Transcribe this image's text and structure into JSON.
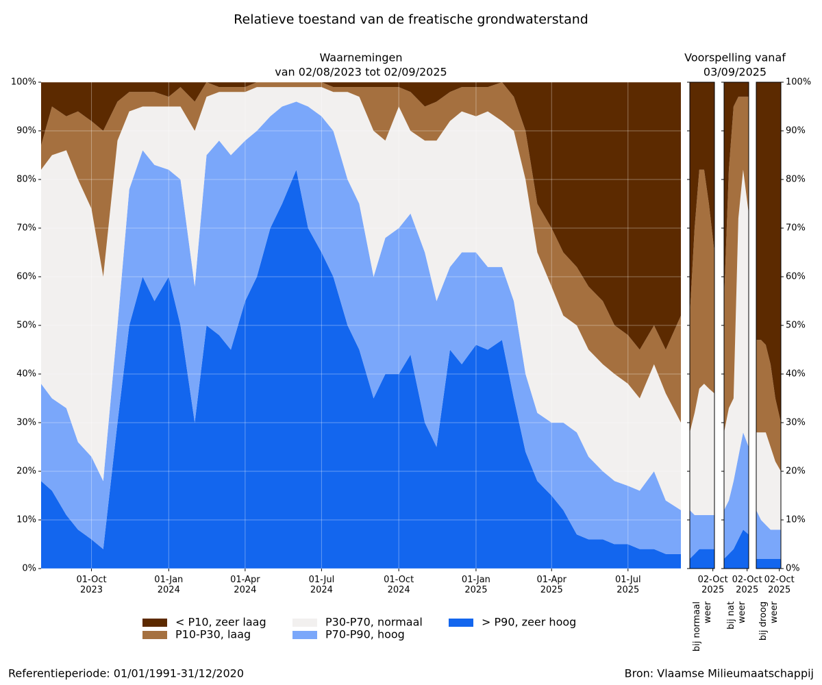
{
  "title": "Relatieve toestand van de freatische grondwaterstand",
  "forecast_title": "Voorspelling vanaf",
  "forecast_subtitle": "03/09/2025",
  "footer_left": "Referentieperiode: 01/01/1991-31/12/2020",
  "footer_right": "Bron: Vlaamse Milieumaatschappij",
  "chart_data": [
    {
      "type": "area",
      "title": "Waarnemingen",
      "subtitle": "van 02/08/2023 tot 02/09/2025",
      "grid": true,
      "xlim": [
        "2023-08-02",
        "2025-09-02"
      ],
      "ylim": [
        0,
        100
      ],
      "yticks": [
        {
          "value": 0,
          "label": "0%"
        },
        {
          "value": 10,
          "label": "10%"
        },
        {
          "value": 20,
          "label": "20%"
        },
        {
          "value": 30,
          "label": "30%"
        },
        {
          "value": 40,
          "label": "40%"
        },
        {
          "value": 50,
          "label": "50%"
        },
        {
          "value": 60,
          "label": "60%"
        },
        {
          "value": 70,
          "label": "70%"
        },
        {
          "value": 80,
          "label": "80%"
        },
        {
          "value": 90,
          "label": "90%"
        },
        {
          "value": 100,
          "label": "100%"
        }
      ],
      "xticks": [
        {
          "value": "2023-10-01",
          "label": "01-Oct 2023"
        },
        {
          "value": "2024-01-01",
          "label": "01-Jan 2024"
        },
        {
          "value": "2024-04-01",
          "label": "01-Apr 2024"
        },
        {
          "value": "2024-07-01",
          "label": "01-Jul 2024"
        },
        {
          "value": "2024-10-01",
          "label": "01-Oct 2024"
        },
        {
          "value": "2025-01-01",
          "label": "01-Jan 2025"
        },
        {
          "value": "2025-04-01",
          "label": "01-Apr 2025"
        },
        {
          "value": "2025-07-01",
          "label": "01-Jul 2025"
        }
      ],
      "x": [
        "2023-08-02",
        "2023-08-15",
        "2023-09-01",
        "2023-09-15",
        "2023-10-01",
        "2023-10-15",
        "2023-11-01",
        "2023-11-15",
        "2023-12-01",
        "2023-12-15",
        "2024-01-01",
        "2024-01-15",
        "2024-02-01",
        "2024-02-15",
        "2024-03-01",
        "2024-03-15",
        "2024-04-01",
        "2024-04-15",
        "2024-05-01",
        "2024-05-15",
        "2024-06-01",
        "2024-06-15",
        "2024-07-01",
        "2024-07-15",
        "2024-08-01",
        "2024-08-15",
        "2024-09-01",
        "2024-09-15",
        "2024-10-01",
        "2024-10-15",
        "2024-11-01",
        "2024-11-15",
        "2024-12-01",
        "2024-12-15",
        "2025-01-01",
        "2025-01-15",
        "2025-02-01",
        "2025-02-15",
        "2025-03-01",
        "2025-03-15",
        "2025-04-01",
        "2025-04-15",
        "2025-05-01",
        "2025-05-15",
        "2025-06-01",
        "2025-06-15",
        "2025-07-01",
        "2025-07-15",
        "2025-08-01",
        "2025-08-15",
        "2025-09-02"
      ],
      "series": [
        {
          "name": "> P90, zeer hoog",
          "color": "#1366ee",
          "values": [
            18,
            16,
            11,
            8,
            6,
            4,
            30,
            50,
            60,
            55,
            60,
            50,
            30,
            50,
            48,
            45,
            55,
            60,
            70,
            75,
            82,
            70,
            65,
            60,
            50,
            45,
            35,
            40,
            40,
            44,
            30,
            25,
            45,
            42,
            46,
            45,
            47,
            35,
            24,
            18,
            15,
            12,
            7,
            6,
            6,
            5,
            5,
            4,
            4,
            3,
            3
          ]
        },
        {
          "name": "P70-P90, hoog",
          "color": "#7aa7fa",
          "values": [
            20,
            19,
            22,
            18,
            17,
            14,
            20,
            28,
            26,
            28,
            22,
            30,
            28,
            35,
            40,
            40,
            33,
            30,
            23,
            20,
            14,
            25,
            28,
            30,
            30,
            30,
            25,
            28,
            30,
            29,
            35,
            30,
            17,
            23,
            19,
            17,
            15,
            20,
            16,
            14,
            15,
            18,
            21,
            17,
            14,
            13,
            12,
            12,
            16,
            11,
            9
          ]
        },
        {
          "name": "P30-P70, normaal",
          "color": "#f2f0ef",
          "values": [
            44,
            50,
            53,
            54,
            51,
            42,
            38,
            16,
            9,
            12,
            13,
            15,
            32,
            12,
            10,
            13,
            10,
            9,
            6,
            4,
            3,
            4,
            6,
            8,
            18,
            22,
            30,
            20,
            25,
            17,
            23,
            33,
            30,
            29,
            28,
            32,
            30,
            35,
            40,
            33,
            28,
            22,
            22,
            22,
            22,
            22,
            21,
            19,
            22,
            22,
            18
          ]
        },
        {
          "name": "P10-P30, laag",
          "color": "#a5703f",
          "values": [
            5,
            10,
            7,
            14,
            18,
            30,
            8,
            4,
            3,
            3,
            2,
            4,
            6,
            3,
            1,
            1,
            1,
            1,
            1,
            1,
            1,
            1,
            1,
            1,
            1,
            2,
            9,
            11,
            4,
            8,
            7,
            8,
            6,
            5,
            6,
            5,
            8,
            7,
            10,
            10,
            12,
            13,
            12,
            13,
            13,
            10,
            10,
            10,
            8,
            9,
            22
          ]
        },
        {
          "name": "< P10, zeer laag",
          "color": "#5c2a00",
          "values": [
            13,
            5,
            7,
            6,
            8,
            10,
            4,
            2,
            2,
            2,
            3,
            1,
            4,
            0,
            1,
            1,
            1,
            0,
            0,
            0,
            0,
            0,
            0,
            1,
            1,
            1,
            1,
            1,
            1,
            2,
            5,
            4,
            2,
            1,
            1,
            1,
            0,
            3,
            10,
            25,
            30,
            35,
            38,
            42,
            45,
            50,
            52,
            55,
            50,
            55,
            48
          ]
        }
      ]
    },
    {
      "type": "area",
      "xlabel": "bij normaal weer",
      "xlim": [
        "2025-09-03",
        "2025-10-04"
      ],
      "ylim": [
        0,
        100
      ],
      "xticks": [
        {
          "value": "2025-10-02",
          "label": "02-Oct 2025"
        }
      ],
      "x": [
        "2025-09-03",
        "2025-09-09",
        "2025-09-15",
        "2025-09-21",
        "2025-09-27",
        "2025-10-04"
      ],
      "series": [
        {
          "values": [
            2,
            3,
            4,
            4,
            4,
            4
          ]
        },
        {
          "values": [
            10,
            8,
            7,
            7,
            7,
            7
          ]
        },
        {
          "values": [
            16,
            21,
            26,
            27,
            26,
            25
          ]
        },
        {
          "values": [
            24,
            38,
            45,
            44,
            38,
            29
          ]
        },
        {
          "values": [
            48,
            30,
            18,
            18,
            25,
            35
          ]
        }
      ]
    },
    {
      "type": "area",
      "xlabel": "bij nat weer",
      "xlim": [
        "2025-09-03",
        "2025-10-04"
      ],
      "ylim": [
        0,
        100
      ],
      "xticks": [
        {
          "value": "2025-10-02",
          "label": "02-Oct 2025"
        }
      ],
      "x": [
        "2025-09-03",
        "2025-09-09",
        "2025-09-15",
        "2025-09-21",
        "2025-09-27",
        "2025-10-04"
      ],
      "series": [
        {
          "values": [
            2,
            3,
            4,
            6,
            8,
            7
          ]
        },
        {
          "values": [
            10,
            11,
            14,
            17,
            20,
            18
          ]
        },
        {
          "values": [
            16,
            19,
            17,
            49,
            54,
            48
          ]
        },
        {
          "values": [
            27,
            49,
            60,
            25,
            15,
            24
          ]
        },
        {
          "values": [
            45,
            18,
            5,
            3,
            3,
            3
          ]
        }
      ]
    },
    {
      "type": "area",
      "xlabel": "bij droog weer",
      "xlim": [
        "2025-09-03",
        "2025-10-04"
      ],
      "ylim": [
        0,
        100
      ],
      "xticks": [
        {
          "value": "2025-10-02",
          "label": "02-Oct 2025"
        }
      ],
      "yticks": [
        {
          "value": 0,
          "label": "0%"
        },
        {
          "value": 10,
          "label": "10%"
        },
        {
          "value": 20,
          "label": "20%"
        },
        {
          "value": 30,
          "label": "30%"
        },
        {
          "value": 40,
          "label": "40%"
        },
        {
          "value": 50,
          "label": "50%"
        },
        {
          "value": 60,
          "label": "60%"
        },
        {
          "value": 70,
          "label": "70%"
        },
        {
          "value": 80,
          "label": "80%"
        },
        {
          "value": 90,
          "label": "90%"
        },
        {
          "value": 100,
          "label": "100%"
        }
      ],
      "x": [
        "2025-09-03",
        "2025-09-09",
        "2025-09-15",
        "2025-09-21",
        "2025-09-27",
        "2025-10-04"
      ],
      "series": [
        {
          "values": [
            2,
            2,
            2,
            2,
            2,
            2
          ]
        },
        {
          "values": [
            10,
            8,
            7,
            6,
            6,
            6
          ]
        },
        {
          "values": [
            16,
            18,
            19,
            17,
            14,
            12
          ]
        },
        {
          "values": [
            19,
            19,
            18,
            17,
            13,
            10
          ]
        },
        {
          "values": [
            53,
            53,
            54,
            58,
            65,
            70
          ]
        }
      ]
    }
  ]
}
